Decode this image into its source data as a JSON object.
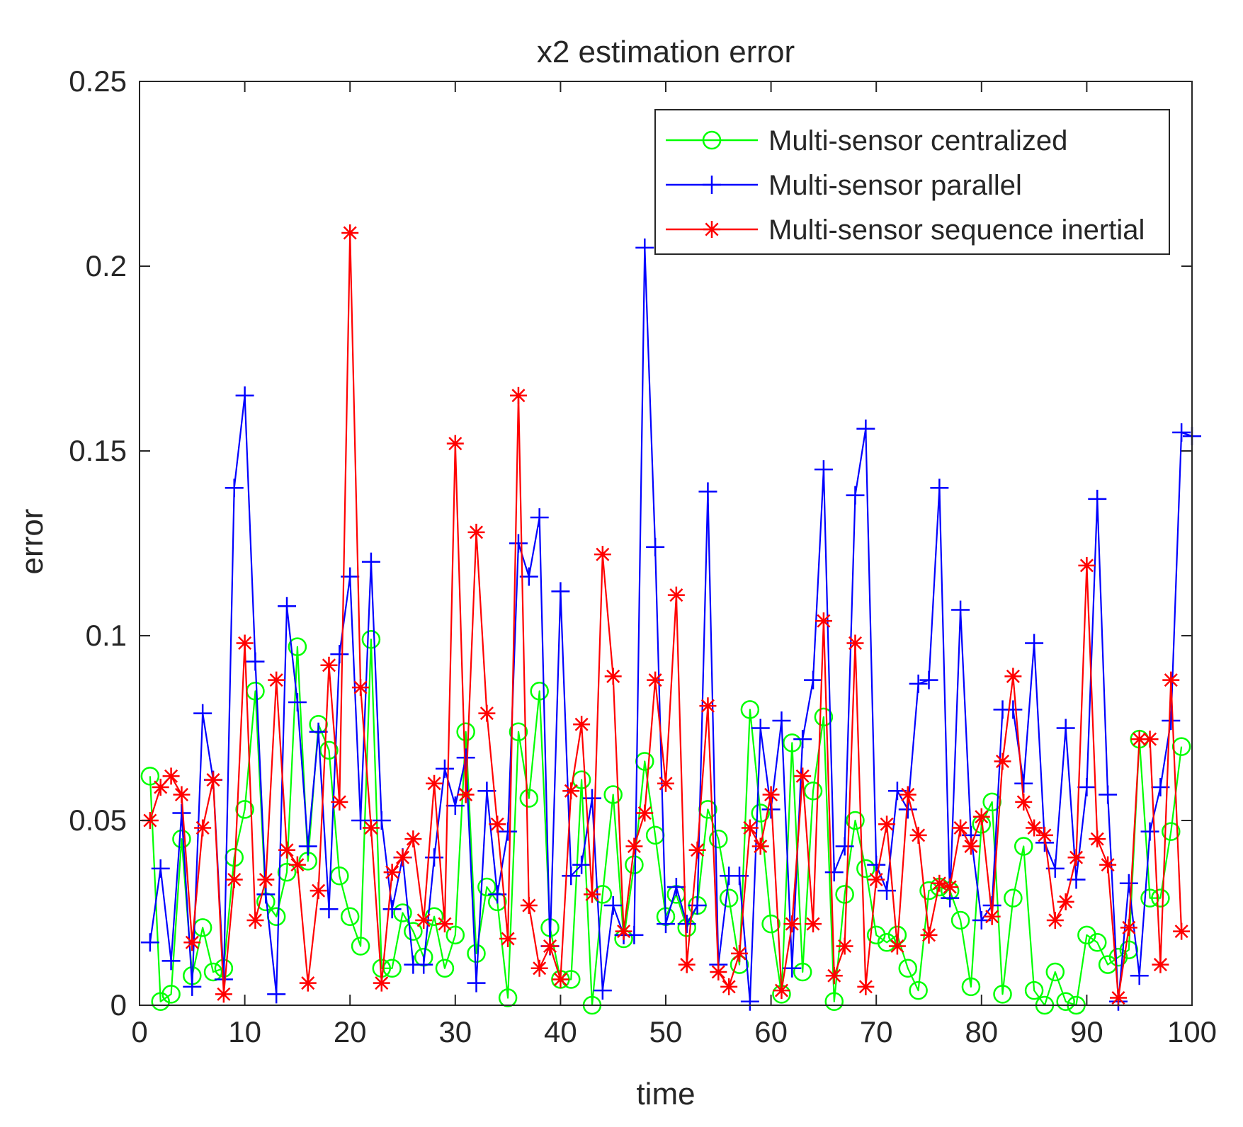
{
  "chart_data": {
    "type": "line",
    "title": "x2 estimation error",
    "xlabel": "time",
    "ylabel": "error",
    "xlim": [
      0,
      100
    ],
    "ylim": [
      0,
      0.25
    ],
    "xticks": [
      0,
      10,
      20,
      30,
      40,
      50,
      60,
      70,
      80,
      90,
      100
    ],
    "xtick_labels": [
      "0",
      "10",
      "20",
      "30",
      "40",
      "50",
      "60",
      "70",
      "80",
      "90",
      "100"
    ],
    "yticks": [
      0,
      0.05,
      0.1,
      0.15,
      0.2,
      0.25
    ],
    "ytick_labels": [
      "0",
      "0.05",
      "0.1",
      "0.15",
      "0.2",
      "0.25"
    ],
    "grid": false,
    "legend_position": "top-right",
    "series": [
      {
        "name": "Multi-sensor centralized",
        "color": "#00ff00",
        "marker": "circle",
        "values": [
          0.062,
          0.001,
          0.003,
          0.045,
          0.008,
          0.021,
          0.009,
          0.01,
          0.04,
          0.053,
          0.085,
          0.028,
          0.024,
          0.036,
          0.097,
          0.039,
          0.076,
          0.069,
          0.035,
          0.024,
          0.016,
          0.099,
          0.01,
          0.01,
          0.025,
          0.02,
          0.013,
          0.024,
          0.01,
          0.019,
          0.074,
          0.014,
          0.032,
          0.028,
          0.002,
          0.074,
          0.056,
          0.085,
          0.021,
          0.007,
          0.007,
          0.061,
          0.0,
          0.03,
          0.057,
          0.018,
          0.038,
          0.066,
          0.046,
          0.024,
          0.03,
          0.021,
          0.027,
          0.053,
          0.045,
          0.029,
          0.011,
          0.08,
          0.052,
          0.022,
          0.003,
          0.071,
          0.009,
          0.058,
          0.078,
          0.001,
          0.03,
          0.05,
          0.037,
          0.019,
          0.017,
          0.019,
          0.01,
          0.004,
          0.031,
          0.032,
          0.031,
          0.023,
          0.005,
          0.049,
          0.055,
          0.003,
          0.029,
          0.043,
          0.004,
          0.0,
          0.009,
          0.001,
          0.0,
          0.019,
          0.017,
          0.011,
          0.013,
          0.015,
          0.072,
          0.029,
          0.029,
          0.047,
          0.07
        ]
      },
      {
        "name": "Multi-sensor parallel",
        "color": "#0000ff",
        "marker": "plus",
        "values": [
          0.017,
          0.037,
          0.012,
          0.052,
          0.005,
          0.079,
          0.061,
          0.007,
          0.14,
          0.165,
          0.093,
          0.03,
          0.003,
          0.108,
          0.082,
          0.043,
          0.074,
          0.026,
          0.095,
          0.116,
          0.05,
          0.12,
          0.05,
          0.026,
          0.04,
          0.011,
          0.011,
          0.04,
          0.064,
          0.054,
          0.067,
          0.006,
          0.058,
          0.03,
          0.047,
          0.125,
          0.116,
          0.132,
          0.016,
          0.112,
          0.035,
          0.038,
          0.056,
          0.004,
          0.027,
          0.019,
          0.019,
          0.205,
          0.124,
          0.022,
          0.032,
          0.022,
          0.027,
          0.139,
          0.011,
          0.035,
          0.035,
          0.001,
          0.075,
          0.053,
          0.077,
          0.01,
          0.072,
          0.088,
          0.145,
          0.036,
          0.043,
          0.138,
          0.156,
          0.038,
          0.031,
          0.058,
          0.053,
          0.087,
          0.088,
          0.14,
          0.029,
          0.107,
          0.046,
          0.023,
          0.027,
          0.08,
          0.08,
          0.06,
          0.098,
          0.044,
          0.037,
          0.075,
          0.034,
          0.059,
          0.137,
          0.057,
          0.001,
          0.033,
          0.008,
          0.047,
          0.059,
          0.077,
          0.155,
          0.154
        ]
      },
      {
        "name": "Multi-sensor sequence inertial",
        "color": "#ff0000",
        "marker": "star",
        "values": [
          0.05,
          0.059,
          0.062,
          0.057,
          0.017,
          0.048,
          0.061,
          0.003,
          0.034,
          0.098,
          0.023,
          0.034,
          0.088,
          0.042,
          0.038,
          0.006,
          0.031,
          0.092,
          0.055,
          0.209,
          0.086,
          0.048,
          0.006,
          0.036,
          0.04,
          0.045,
          0.023,
          0.06,
          0.022,
          0.152,
          0.057,
          0.128,
          0.079,
          0.049,
          0.018,
          0.165,
          0.027,
          0.01,
          0.016,
          0.007,
          0.058,
          0.076,
          0.03,
          0.122,
          0.089,
          0.02,
          0.043,
          0.052,
          0.088,
          0.06,
          0.111,
          0.011,
          0.042,
          0.081,
          0.009,
          0.005,
          0.014,
          0.048,
          0.043,
          0.057,
          0.004,
          0.022,
          0.062,
          0.022,
          0.104,
          0.008,
          0.016,
          0.098,
          0.005,
          0.034,
          0.049,
          0.016,
          0.057,
          0.046,
          0.019,
          0.033,
          0.032,
          0.048,
          0.043,
          0.051,
          0.024,
          0.066,
          0.089,
          0.055,
          0.048,
          0.046,
          0.023,
          0.028,
          0.04,
          0.119,
          0.045,
          0.038,
          0.002,
          0.021,
          0.072,
          0.072,
          0.011,
          0.088,
          0.02
        ]
      }
    ]
  }
}
